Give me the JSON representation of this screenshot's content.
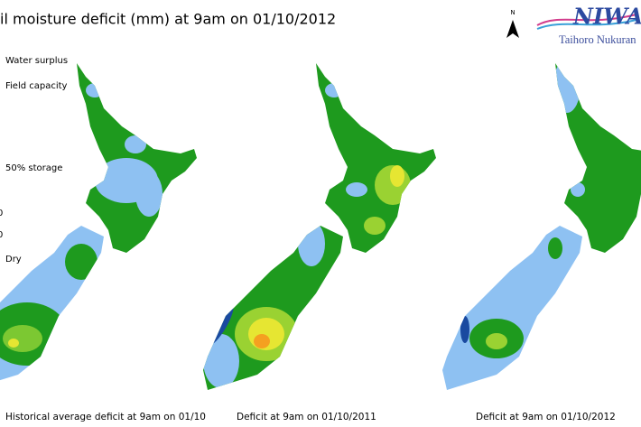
{
  "header": {
    "title": "il moisture deficit (mm) at  9am on 01/10/2012",
    "north": "N",
    "logo": "NIWA",
    "logo_subtitle": "Taihoro Nukuran"
  },
  "legend": {
    "items": [
      "Water surplus",
      "Field capacity",
      "50% storage",
      "0",
      "0",
      "Dry"
    ]
  },
  "maps": [
    {
      "caption": "Historical average deficit at 9am on 01/10"
    },
    {
      "caption": "Deficit at  9am on 01/10/2011"
    },
    {
      "caption": "Deficit at  9am on 01/10/2012"
    }
  ]
}
